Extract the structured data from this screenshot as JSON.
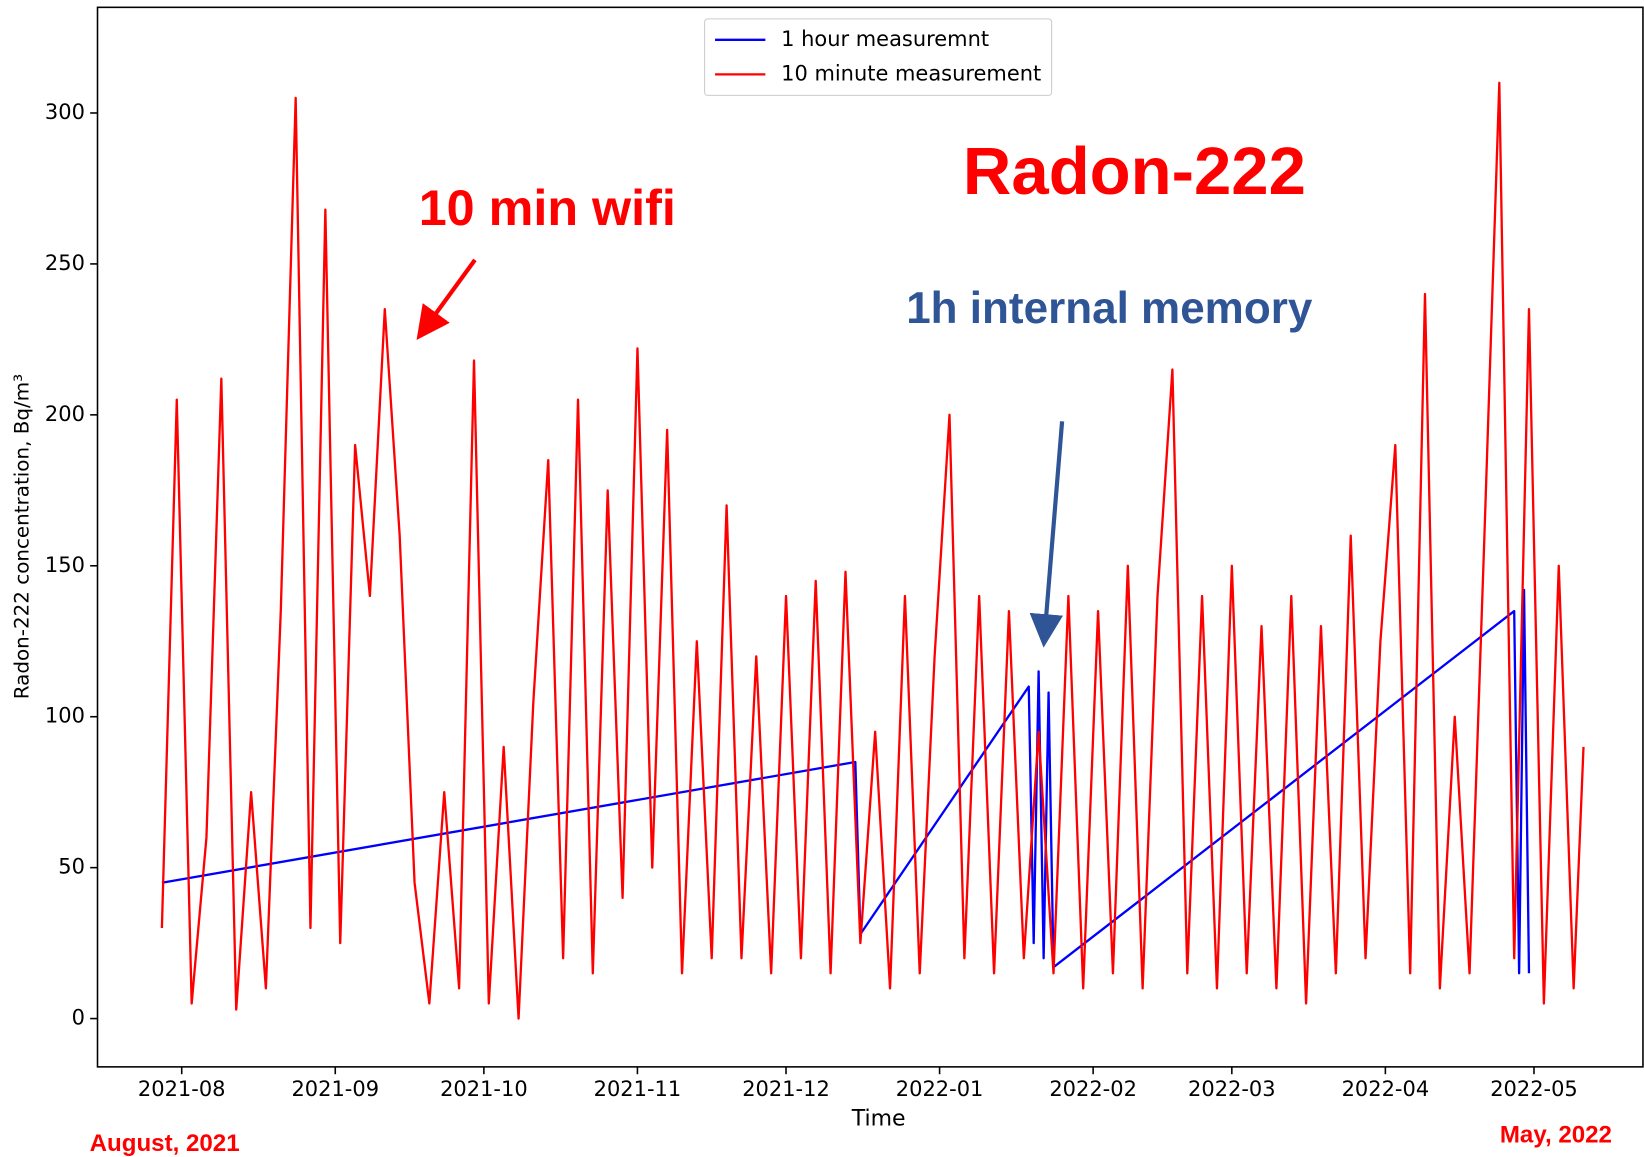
{
  "chart_data": {
    "type": "line",
    "xlabel": "Time",
    "ylabel": "Radon-222 concentration, Bq/m³",
    "xlim": [
      "2021-07-15",
      "2022-05-23"
    ],
    "ylim": [
      -16,
      335
    ],
    "xticks": [
      "2021-08",
      "2021-09",
      "2021-10",
      "2021-11",
      "2021-12",
      "2022-01",
      "2022-02",
      "2022-03",
      "2022-04",
      "2022-05"
    ],
    "yticks": [
      0,
      50,
      100,
      150,
      200,
      250,
      300
    ],
    "grid": false,
    "legend": "upper center",
    "annotations": [
      "10 min wifi",
      "Radon-222",
      "1h internal memory",
      "August, 2021",
      "May, 2022"
    ],
    "series": [
      {
        "name": "1 hour measuremnt",
        "color": "#0000ff",
        "x": [
          "2021-07-28",
          "2021-12-15",
          "2021-12-16",
          "2022-01-19",
          "2022-01-20",
          "2022-01-21",
          "2022-01-22",
          "2022-01-23",
          "2022-01-24",
          "2022-04-27",
          "2022-04-28",
          "2022-04-29",
          "2022-04-30"
        ],
        "values": [
          45,
          85,
          28,
          110,
          25,
          115,
          20,
          108,
          17,
          135,
          15,
          142,
          15
        ]
      },
      {
        "name": "10 minute measurement",
        "color": "#ff0000",
        "x": [
          "2021-07-28",
          "2021-07-31",
          "2021-08-03",
          "2021-08-06",
          "2021-08-09",
          "2021-08-12",
          "2021-08-15",
          "2021-08-18",
          "2021-08-21",
          "2021-08-24",
          "2021-08-27",
          "2021-08-30",
          "2021-09-02",
          "2021-09-05",
          "2021-09-08",
          "2021-09-11",
          "2021-09-14",
          "2021-09-17",
          "2021-09-20",
          "2021-09-23",
          "2021-09-26",
          "2021-09-29",
          "2021-10-02",
          "2021-10-05",
          "2021-10-08",
          "2021-10-11",
          "2021-10-14",
          "2021-10-17",
          "2021-10-20",
          "2021-10-23",
          "2021-10-26",
          "2021-10-29",
          "2021-11-01",
          "2021-11-04",
          "2021-11-07",
          "2021-11-10",
          "2021-11-13",
          "2021-11-16",
          "2021-11-19",
          "2021-11-22",
          "2021-11-25",
          "2021-11-28",
          "2021-12-01",
          "2021-12-04",
          "2021-12-07",
          "2021-12-10",
          "2021-12-13",
          "2021-12-16",
          "2021-12-19",
          "2021-12-22",
          "2021-12-25",
          "2021-12-28",
          "2021-12-31",
          "2022-01-03",
          "2022-01-06",
          "2022-01-09",
          "2022-01-12",
          "2022-01-15",
          "2022-01-18",
          "2022-01-21",
          "2022-01-24",
          "2022-01-27",
          "2022-01-30",
          "2022-02-02",
          "2022-02-05",
          "2022-02-08",
          "2022-02-11",
          "2022-02-14",
          "2022-02-17",
          "2022-02-20",
          "2022-02-23",
          "2022-02-26",
          "2022-03-01",
          "2022-03-04",
          "2022-03-07",
          "2022-03-10",
          "2022-03-13",
          "2022-03-16",
          "2022-03-19",
          "2022-03-22",
          "2022-03-25",
          "2022-03-28",
          "2022-03-31",
          "2022-04-03",
          "2022-04-06",
          "2022-04-09",
          "2022-04-12",
          "2022-04-15",
          "2022-04-18",
          "2022-04-21",
          "2022-04-24",
          "2022-04-27",
          "2022-04-30",
          "2022-05-03",
          "2022-05-06",
          "2022-05-09",
          "2022-05-11"
        ],
        "values": [
          30,
          205,
          5,
          60,
          212,
          3,
          75,
          10,
          135,
          305,
          30,
          268,
          25,
          190,
          140,
          235,
          160,
          45,
          5,
          75,
          10,
          218,
          5,
          90,
          0,
          105,
          185,
          20,
          205,
          15,
          175,
          40,
          222,
          50,
          195,
          15,
          125,
          20,
          170,
          20,
          120,
          15,
          140,
          20,
          145,
          15,
          148,
          25,
          95,
          10,
          140,
          15,
          120,
          200,
          20,
          140,
          15,
          135,
          20,
          95,
          15,
          140,
          10,
          135,
          15,
          150,
          10,
          140,
          215,
          15,
          140,
          10,
          150,
          15,
          130,
          10,
          140,
          5,
          130,
          15,
          160,
          20,
          125,
          190,
          15,
          240,
          10,
          100,
          15,
          160,
          310,
          20,
          235,
          5,
          150,
          10,
          90
        ]
      }
    ]
  }
}
